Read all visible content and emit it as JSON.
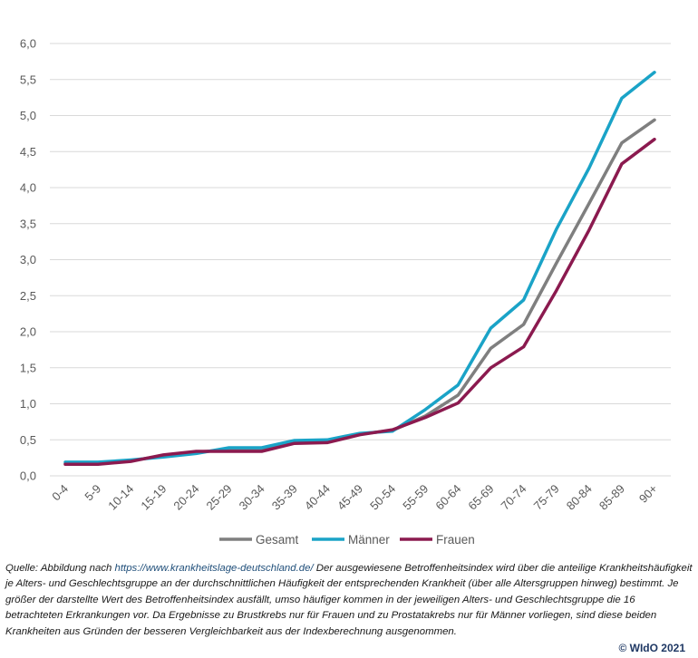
{
  "chart_data": {
    "type": "line",
    "categories": [
      "0-4",
      "5-9",
      "10-14",
      "15-19",
      "20-24",
      "25-29",
      "30-34",
      "35-39",
      "40-44",
      "45-49",
      "50-54",
      "55-59",
      "60-64",
      "65-69",
      "70-74",
      "75-79",
      "80-84",
      "85-89",
      "90+"
    ],
    "yticks": [
      "0,0",
      "0,5",
      "1,0",
      "1,5",
      "2,0",
      "2,5",
      "3,0",
      "3,5",
      "4,0",
      "4,5",
      "5,0",
      "5,5",
      "6,0"
    ],
    "ylim": [
      0,
      6
    ],
    "grid": true,
    "legend_position": "bottom",
    "series": [
      {
        "name": "Gesamt",
        "color": "#7f7f7f",
        "values": [
          0.17,
          0.17,
          0.21,
          0.28,
          0.33,
          0.36,
          0.36,
          0.47,
          0.48,
          0.58,
          0.63,
          0.83,
          1.12,
          1.77,
          2.1,
          2.95,
          3.78,
          4.62,
          4.94
        ]
      },
      {
        "name": "Männer",
        "color": "#1aa3c7",
        "values": [
          0.19,
          0.19,
          0.22,
          0.26,
          0.31,
          0.39,
          0.39,
          0.49,
          0.5,
          0.59,
          0.62,
          0.92,
          1.26,
          2.05,
          2.44,
          3.42,
          4.27,
          5.24,
          5.6
        ]
      },
      {
        "name": "Frauen",
        "color": "#8b1a4f",
        "values": [
          0.16,
          0.16,
          0.2,
          0.29,
          0.34,
          0.34,
          0.34,
          0.45,
          0.46,
          0.57,
          0.64,
          0.81,
          1.01,
          1.5,
          1.79,
          2.57,
          3.41,
          4.33,
          4.67
        ]
      }
    ]
  },
  "caption": {
    "prefix": "Quelle: Abbildung nach ",
    "url": "https://www.krankheitslage-deutschland.de/",
    "text": " Der ausgewiesene Betroffenheitsindex wird über die anteilige Krankheitshäufigkeit je Alters- und Geschlechtsgruppe an der durchschnittlichen Häufigkeit der entsprechenden Krankheit (über alle Altersgruppen hinweg) bestimmt. Je größer der darstellte Wert des Betroffenheitsindex ausfällt, umso häufiger kommen in der jeweiligen Alters- und Geschlechtsgruppe die 16 betrachteten Erkrankungen vor. Da Ergebnisse zu Brustkrebs nur für Frauen und zu Prostatakrebs nur für Männer vorliegen, sind diese beiden Krankheiten aus Gründen der besseren Vergleichbarkeit aus der Indexberechnung ausgenommen."
  },
  "copyright": "© WIdO 2021"
}
